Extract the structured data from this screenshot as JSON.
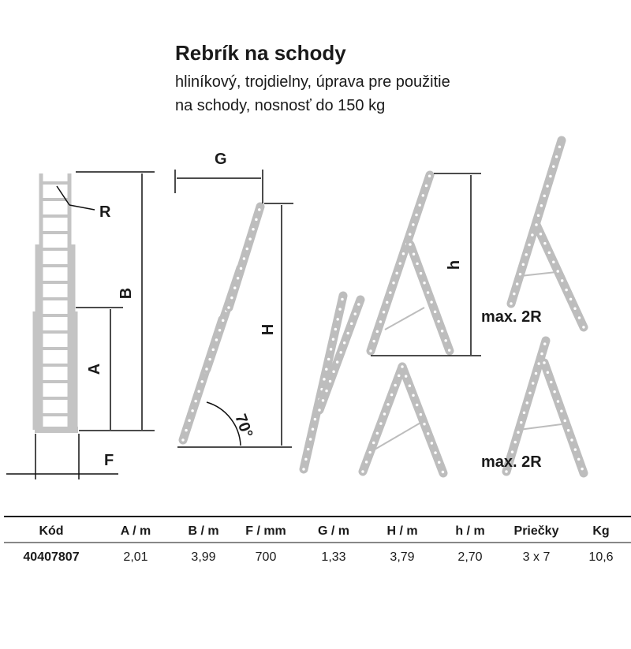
{
  "header": {
    "title": "Rebrík na schody",
    "subtitle": [
      "hliníkový, trojdielny, úprava pre použitie",
      "na schody, nosnosť do 150 kg"
    ]
  },
  "diagram": {
    "labels": {
      "R": "R",
      "B": "B",
      "A": "A",
      "F": "F",
      "G": "G",
      "H": "H",
      "angle": "70°",
      "h": "h",
      "max_top": "max. 2R",
      "max_bottom": "max. 2R"
    }
  },
  "table": {
    "columns": [
      "Kód",
      "A / m",
      "B / m",
      "F / mm",
      "G / m",
      "H / m",
      "h / m",
      "Priečky",
      "Kg"
    ],
    "rows": [
      [
        "40407807",
        "2,01",
        "3,99",
        "700",
        "1,33",
        "3,79",
        "2,70",
        "3 x 7",
        "10,6"
      ]
    ]
  }
}
